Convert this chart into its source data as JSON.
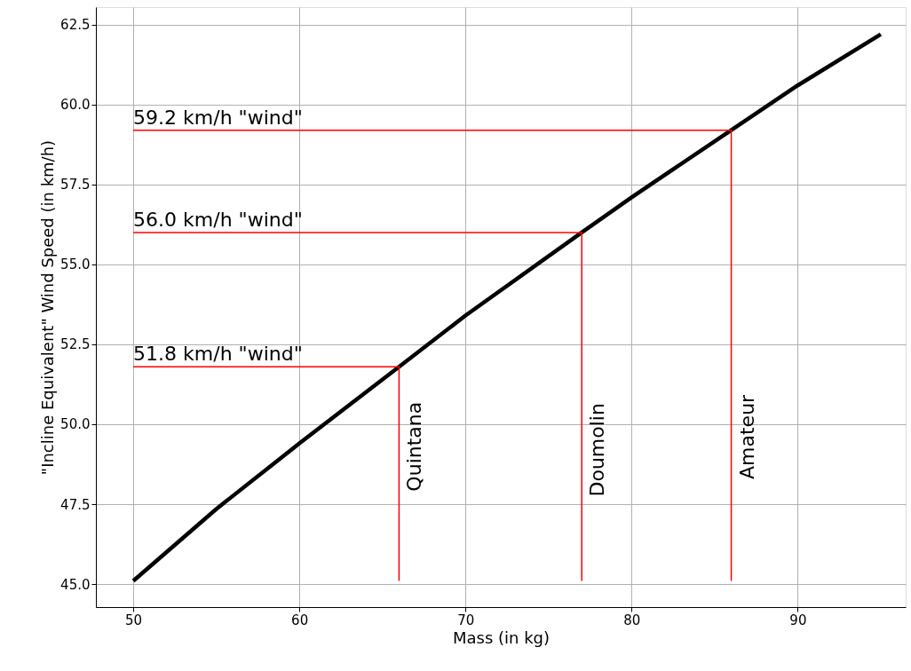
{
  "chart_data": {
    "type": "line",
    "xlabel": "Mass (in kg)",
    "ylabel": "\"Incline Equivalent\" Wind Speed  (in km/h)",
    "series": [
      {
        "color": "#000000",
        "x": [
          50,
          55,
          60,
          66,
          70,
          77,
          80,
          86,
          90,
          95
        ],
        "values": [
          45.1,
          47.35,
          49.4,
          51.8,
          53.4,
          56.0,
          57.1,
          59.2,
          60.6,
          62.2
        ]
      },
      {
        "color": "#ff0000",
        "x": [
          50,
          66,
          66
        ],
        "values": [
          51.8,
          51.8,
          45.1
        ]
      },
      {
        "color": "#ff0000",
        "x": [
          50,
          77,
          77
        ],
        "values": [
          56.0,
          56.0,
          45.1
        ]
      },
      {
        "color": "#ff0000",
        "x": [
          50,
          86,
          86
        ],
        "values": [
          59.2,
          59.2,
          45.1
        ]
      }
    ],
    "annotations": [
      {
        "text": "51.8 km/h \"wind\"",
        "x": 50,
        "y": 51.8
      },
      {
        "text": "56.0 km/h \"wind\"",
        "x": 50,
        "y": 56.0
      },
      {
        "text": "59.2 km/h \"wind\"",
        "x": 50,
        "y": 59.2
      },
      {
        "text": "Quintana",
        "x": 66,
        "y": 49.3
      },
      {
        "text": "Doumolin",
        "x": 77,
        "y": 49.2
      },
      {
        "text": "Amateur",
        "x": 86,
        "y": 49.6
      }
    ],
    "xlim": [
      47.75,
      96.5
    ],
    "xticks": [
      50,
      60,
      70,
      80,
      90
    ],
    "ylim": [
      44.28,
      63.05
    ],
    "yticks": [
      {
        "value": 45,
        "label": "45.0"
      },
      {
        "value": 47.5,
        "label": "47.5"
      },
      {
        "value": 50,
        "label": "50.0"
      },
      {
        "value": 52.5,
        "label": "52.5"
      },
      {
        "value": 55,
        "label": "55.0"
      },
      {
        "value": 57.5,
        "label": "57.5"
      },
      {
        "value": 60,
        "label": "60.0"
      },
      {
        "value": 62.5,
        "label": "62.5"
      }
    ],
    "grid": true,
    "marker": "none",
    "line_style": "solid"
  }
}
